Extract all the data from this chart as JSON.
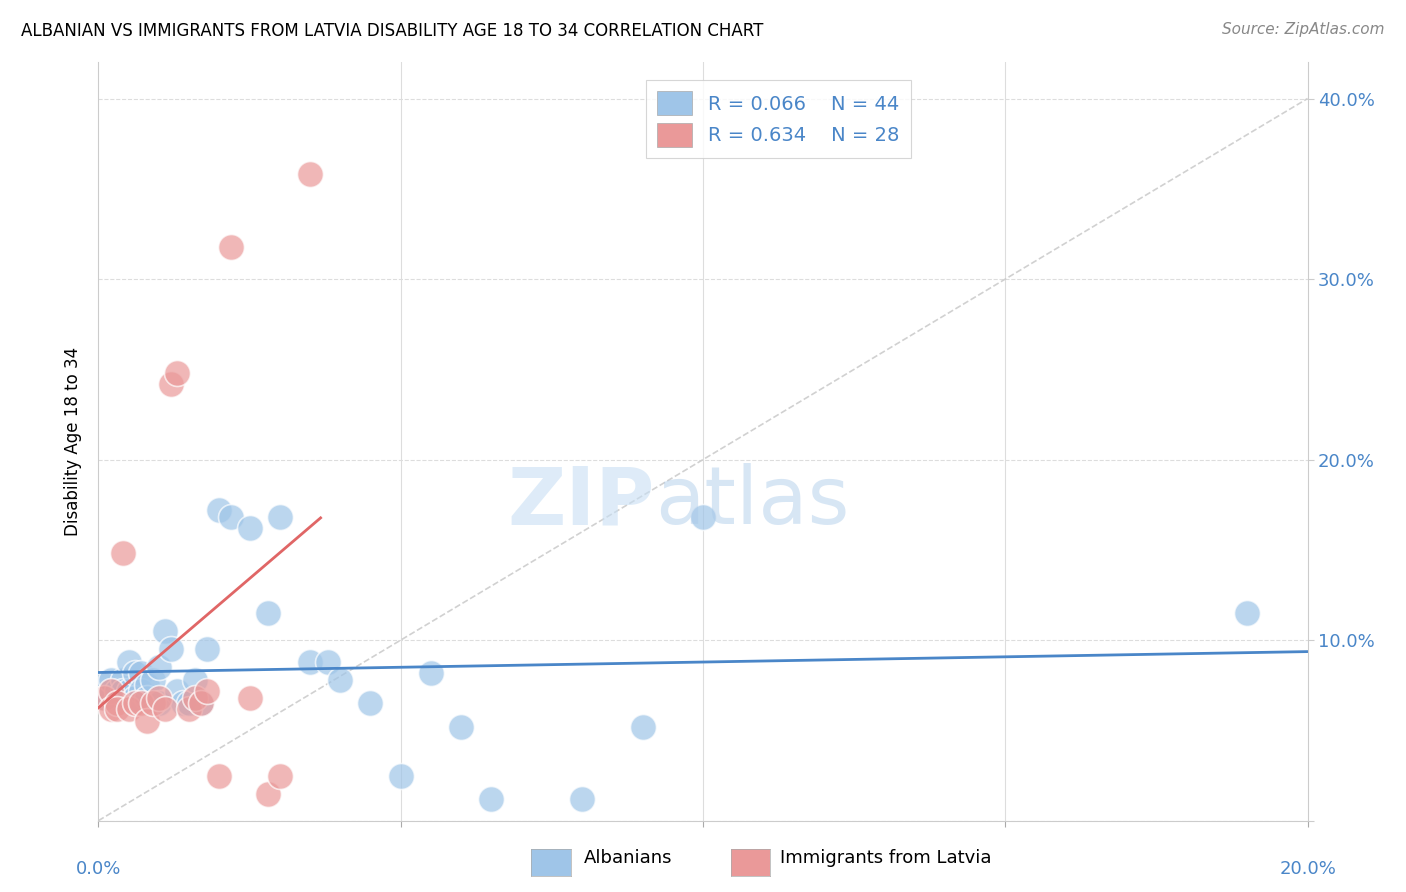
{
  "title": "ALBANIAN VS IMMIGRANTS FROM LATVIA DISABILITY AGE 18 TO 34 CORRELATION CHART",
  "source": "Source: ZipAtlas.com",
  "ylabel": "Disability Age 18 to 34",
  "ytick_values": [
    0.0,
    0.1,
    0.2,
    0.3,
    0.4
  ],
  "ytick_labels": [
    "",
    "10.0%",
    "20.0%",
    "30.0%",
    "40.0%"
  ],
  "xlim": [
    0.0,
    0.2
  ],
  "ylim": [
    0.0,
    0.42
  ],
  "color_albanian": "#9fc5e8",
  "color_latvia": "#ea9999",
  "color_albanian_line": "#4a86c8",
  "color_latvia_line": "#e06666",
  "color_diagonal": "#cccccc",
  "albanian_x": [
    0.001,
    0.001,
    0.002,
    0.002,
    0.003,
    0.003,
    0.004,
    0.004,
    0.005,
    0.005,
    0.006,
    0.006,
    0.007,
    0.007,
    0.008,
    0.008,
    0.009,
    0.01,
    0.01,
    0.011,
    0.012,
    0.013,
    0.014,
    0.015,
    0.016,
    0.017,
    0.018,
    0.02,
    0.022,
    0.025,
    0.028,
    0.03,
    0.035,
    0.038,
    0.04,
    0.045,
    0.05,
    0.055,
    0.06,
    0.065,
    0.08,
    0.09,
    0.1,
    0.19
  ],
  "albanian_y": [
    0.075,
    0.068,
    0.072,
    0.078,
    0.068,
    0.072,
    0.078,
    0.072,
    0.088,
    0.072,
    0.082,
    0.068,
    0.082,
    0.072,
    0.075,
    0.068,
    0.078,
    0.085,
    0.065,
    0.105,
    0.095,
    0.072,
    0.065,
    0.065,
    0.078,
    0.065,
    0.095,
    0.172,
    0.168,
    0.162,
    0.115,
    0.168,
    0.088,
    0.088,
    0.078,
    0.065,
    0.025,
    0.082,
    0.052,
    0.012,
    0.012,
    0.052,
    0.168,
    0.115
  ],
  "latvia_x": [
    0.001,
    0.002,
    0.002,
    0.003,
    0.003,
    0.004,
    0.005,
    0.006,
    0.007,
    0.008,
    0.009,
    0.01,
    0.011,
    0.012,
    0.013,
    0.015,
    0.016,
    0.017,
    0.018,
    0.02,
    0.022,
    0.025,
    0.028,
    0.03,
    0.035
  ],
  "latvia_y": [
    0.068,
    0.072,
    0.062,
    0.065,
    0.062,
    0.148,
    0.062,
    0.065,
    0.065,
    0.055,
    0.065,
    0.068,
    0.062,
    0.242,
    0.248,
    0.062,
    0.068,
    0.065,
    0.072,
    0.025,
    0.318,
    0.068,
    0.015,
    0.025,
    0.358
  ]
}
